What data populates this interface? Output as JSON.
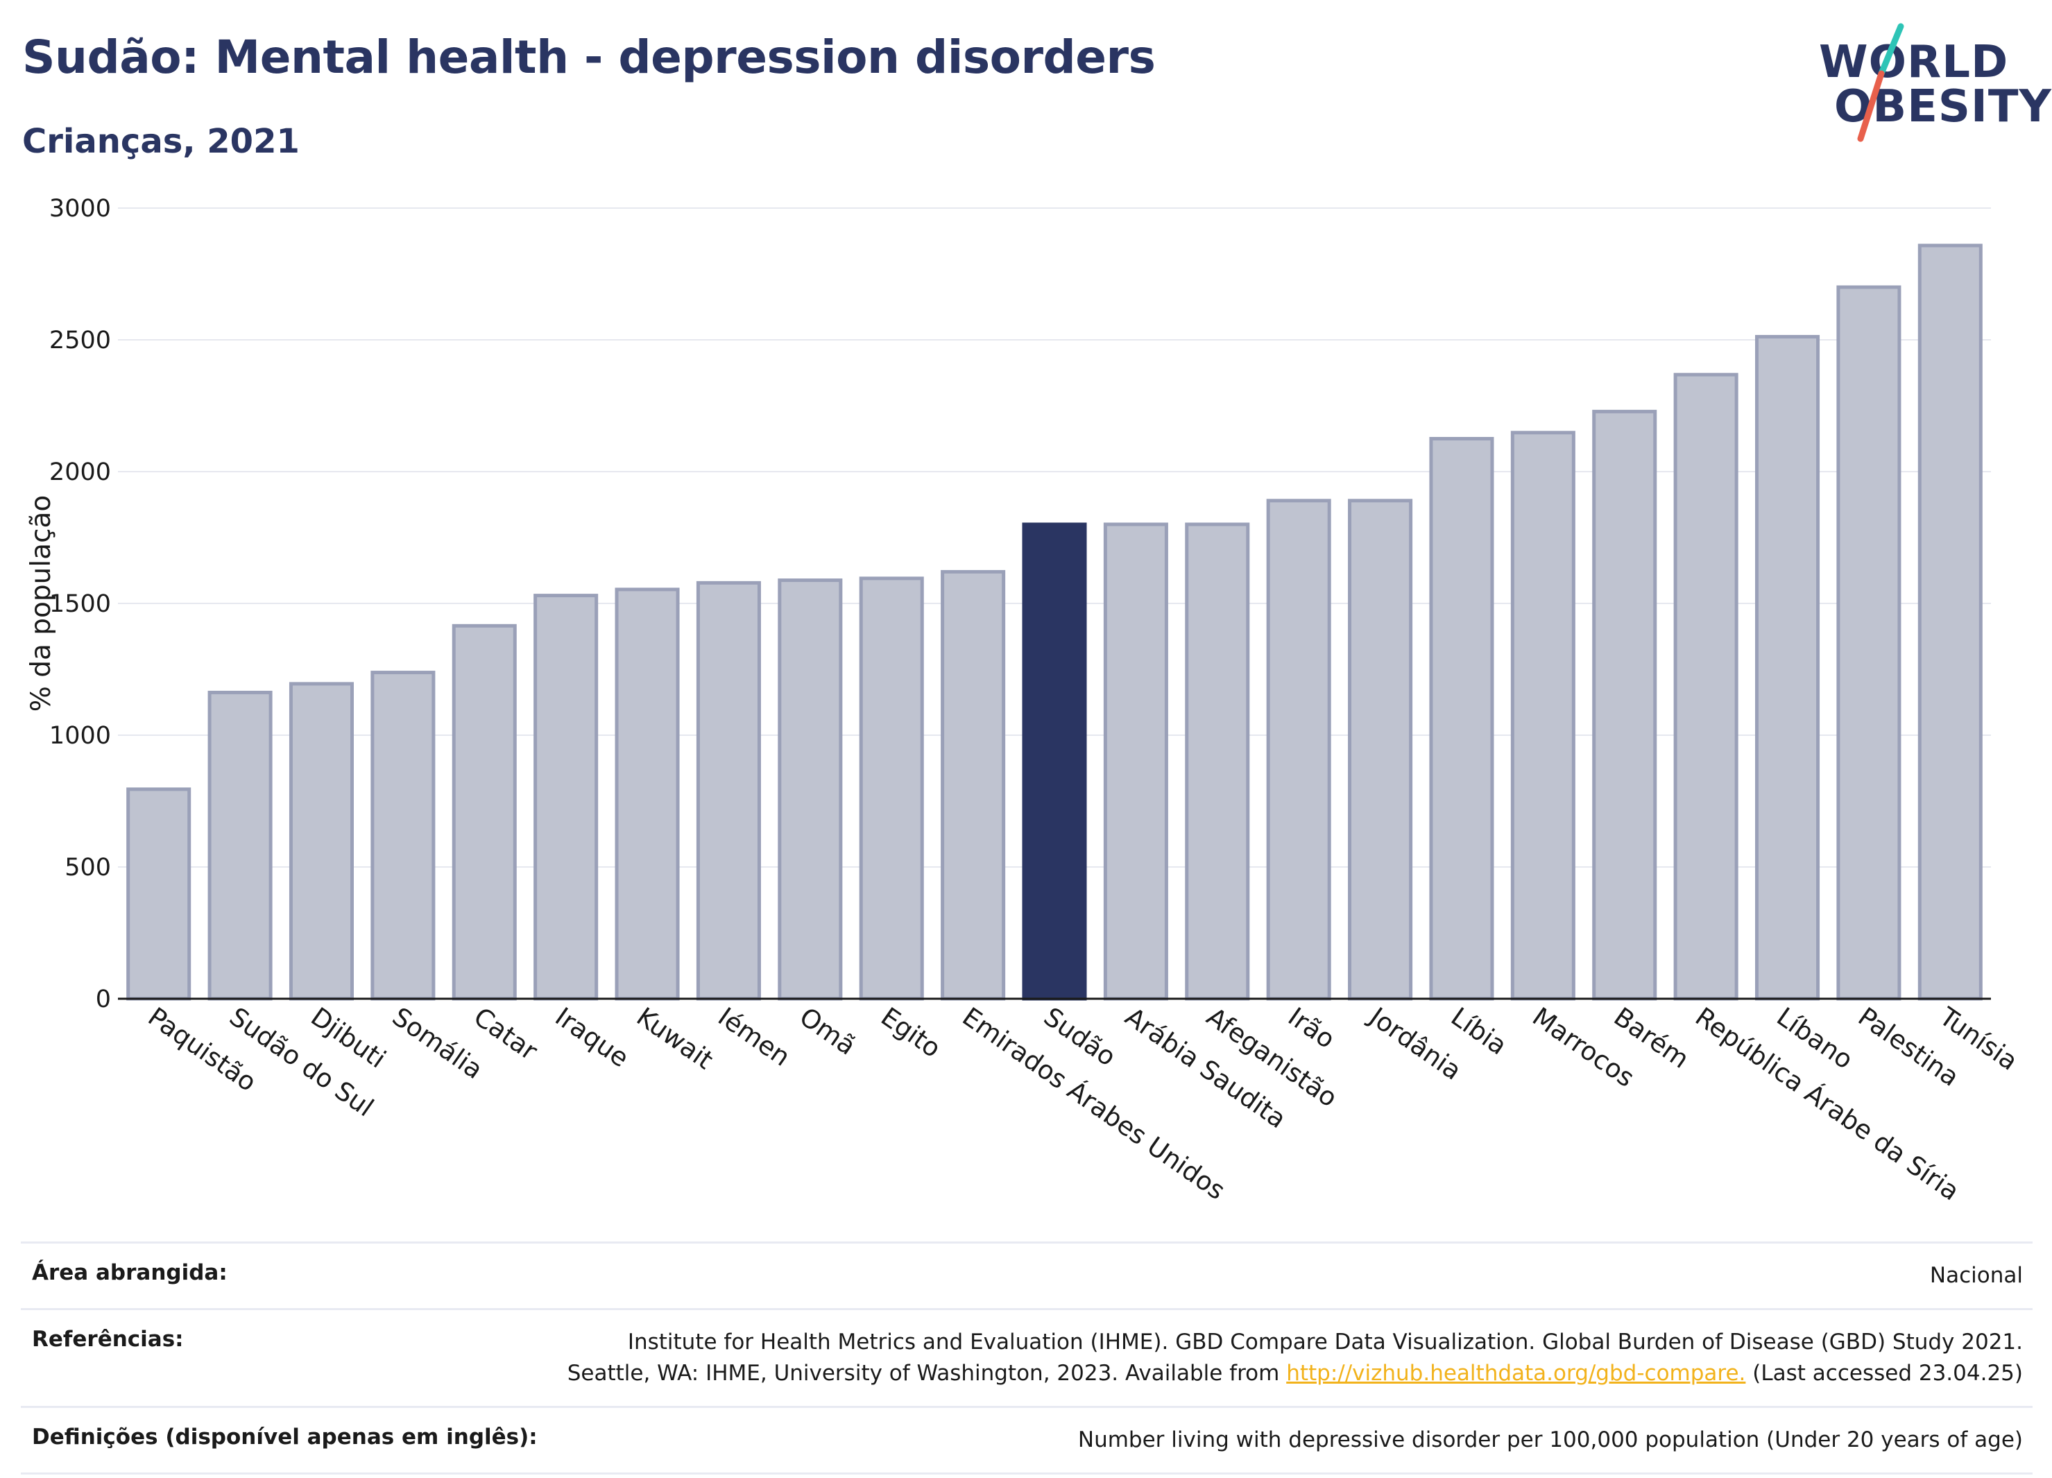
{
  "header": {
    "title": "Sudão: Mental health - depression disorders",
    "subtitle": "Crianças, 2021"
  },
  "logo": {
    "line1": "WORLD",
    "line2": "OBESITY"
  },
  "colors": {
    "bar_default": "#bfc3d0",
    "bar_default_stroke": "#9aa0b8",
    "bar_highlight": "#2a3562",
    "title": "#2a3562",
    "gridline": "#e6e8ef",
    "link": "#f2b21b",
    "logo_teal": "#2ec4b6",
    "logo_red": "#e8604c"
  },
  "chart_data": {
    "type": "bar",
    "ylabel": "% da população",
    "xlabel": "",
    "ylim": [
      0,
      3000
    ],
    "yticks": [
      0,
      500,
      1000,
      1500,
      2000,
      2500,
      3000
    ],
    "grid": true,
    "highlight": "Sudão",
    "categories": [
      "Paquistão",
      "Sudão do Sul",
      "Djibuti",
      "Somália",
      "Catar",
      "Iraque",
      "Kuwait",
      "Iémen",
      "Omã",
      "Egito",
      "Emirados Árabes Unidos",
      "Sudão",
      "Arábia Saudita",
      "Afeganistão",
      "Irão",
      "Jordânia",
      "Líbia",
      "Marrocos",
      "Barém",
      "República Árabe da Síria",
      "Líbano",
      "Palestina",
      "Tunísia"
    ],
    "values": [
      795,
      1162,
      1195,
      1238,
      1415,
      1530,
      1553,
      1578,
      1588,
      1595,
      1620,
      1800,
      1800,
      1800,
      1890,
      1890,
      2125,
      2148,
      2228,
      2368,
      2512,
      2700,
      2858
    ]
  },
  "footer": {
    "area_label": "Área abrangida:",
    "area_value": "Nacional",
    "refs_label": "Referências:",
    "refs_line1": "Institute for Health Metrics and Evaluation (IHME). GBD Compare Data Visualization. Global Burden of Disease (GBD) Study 2021.",
    "refs_line2_pre": "Seattle, WA: IHME, University of Washington, 2023. Available from ",
    "refs_link": "http://vizhub.healthdata.org/gbd-compare.",
    "refs_line2_post": " (Last accessed 23.04.25)",
    "defs_label": "Definições (disponível apenas em inglês):",
    "defs_value": "Number living with depressive disorder per 100,000 population (Under 20 years of age)"
  }
}
